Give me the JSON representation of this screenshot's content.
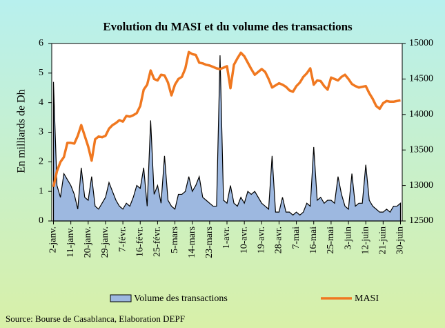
{
  "chart_data": {
    "type": "line",
    "title": "Evolution du MASI et du volume des transactions",
    "y_label": "En milliards de Dh",
    "source": "Source: Bourse de Casablanca, Elaboration DEPF",
    "categories": [
      "2-janv.",
      null,
      null,
      null,
      null,
      "11-janv.",
      null,
      null,
      null,
      null,
      "20-janv.",
      null,
      null,
      null,
      null,
      "29-janv.",
      null,
      null,
      null,
      null,
      "7-févr.",
      null,
      null,
      null,
      null,
      "16-févr.",
      null,
      null,
      null,
      null,
      "25-févr.",
      null,
      null,
      null,
      null,
      "5-mars",
      null,
      null,
      null,
      null,
      "14-mars",
      null,
      null,
      null,
      null,
      "23-mars",
      null,
      null,
      null,
      null,
      "1-avr.",
      null,
      null,
      null,
      null,
      "10-avr.",
      null,
      null,
      null,
      null,
      "19-avr.",
      null,
      null,
      null,
      null,
      "28-avr.",
      null,
      null,
      null,
      null,
      "7-mai",
      null,
      null,
      null,
      null,
      "16-mai",
      null,
      null,
      null,
      null,
      "25-mai",
      null,
      null,
      null,
      null,
      "3-juin",
      null,
      null,
      null,
      null,
      "12-juin",
      null,
      null,
      null,
      null,
      "21-juin",
      null,
      null,
      null,
      null,
      "30-juin"
    ],
    "series": [
      {
        "name": "Volume des transactions",
        "type": "area",
        "color": "#9db8e0",
        "stroke": "#000000",
        "axis": "y",
        "values": [
          4.7,
          1.2,
          0.8,
          1.6,
          1.4,
          1.2,
          0.9,
          0.4,
          1.8,
          0.8,
          0.7,
          1.5,
          0.5,
          0.4,
          0.6,
          0.8,
          1.3,
          1.0,
          0.7,
          0.5,
          0.4,
          0.6,
          0.5,
          0.8,
          1.2,
          1.1,
          1.8,
          0.5,
          3.4,
          0.9,
          1.2,
          0.6,
          2.2,
          0.7,
          0.5,
          0.4,
          0.9,
          0.9,
          1.0,
          1.5,
          1.0,
          1.2,
          1.5,
          0.8,
          0.7,
          0.6,
          0.5,
          0.5,
          5.6,
          0.7,
          0.6,
          1.2,
          0.6,
          0.5,
          0.8,
          0.6,
          1.0,
          0.9,
          1.0,
          0.8,
          0.6,
          0.5,
          0.4,
          2.2,
          0.3,
          0.3,
          0.8,
          0.3,
          0.3,
          0.2,
          0.3,
          0.2,
          0.3,
          0.6,
          0.5,
          2.5,
          0.7,
          0.8,
          0.6,
          0.7,
          0.7,
          0.6,
          1.5,
          0.9,
          0.5,
          0.4,
          1.6,
          0.5,
          0.6,
          0.6,
          1.9,
          0.7,
          0.5,
          0.4,
          0.3,
          0.3,
          0.4,
          0.3,
          0.5,
          0.5,
          0.6
        ]
      },
      {
        "name": "MASI",
        "type": "line",
        "color": "#f07820",
        "axis": "y2",
        "values": [
          12980,
          13200,
          13330,
          13400,
          13600,
          13600,
          13590,
          13700,
          13850,
          13700,
          13550,
          13350,
          13650,
          13690,
          13680,
          13700,
          13800,
          13850,
          13880,
          13920,
          13900,
          13980,
          13970,
          13990,
          14020,
          14120,
          14350,
          14420,
          14620,
          14500,
          14480,
          14560,
          14550,
          14450,
          14270,
          14420,
          14500,
          14530,
          14650,
          14880,
          14850,
          14840,
          14730,
          14720,
          14700,
          14690,
          14670,
          14650,
          14640,
          14660,
          14680,
          14370,
          14700,
          14790,
          14870,
          14820,
          14730,
          14640,
          14560,
          14600,
          14640,
          14600,
          14500,
          14380,
          14410,
          14440,
          14420,
          14390,
          14340,
          14320,
          14400,
          14450,
          14530,
          14580,
          14650,
          14420,
          14480,
          14470,
          14400,
          14350,
          14520,
          14500,
          14480,
          14530,
          14560,
          14500,
          14430,
          14400,
          14380,
          14390,
          14400,
          14300,
          14220,
          14120,
          14080,
          14160,
          14190,
          14180,
          14180,
          14190,
          14200
        ]
      }
    ],
    "ylim": [
      0,
      6
    ],
    "yticks": [
      0,
      1,
      2,
      3,
      4,
      5,
      6
    ],
    "y2lim": [
      12500,
      15000
    ],
    "y2ticks": [
      12500,
      13000,
      13500,
      14000,
      14500,
      15000
    ]
  }
}
